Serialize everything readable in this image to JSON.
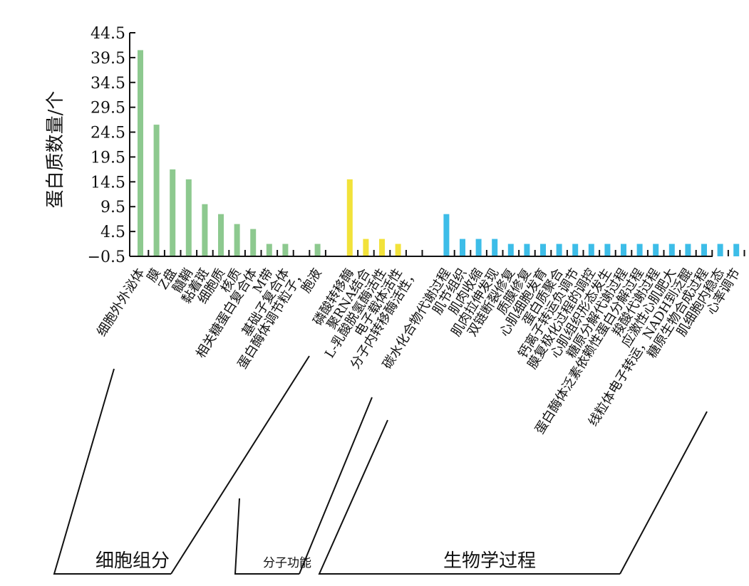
{
  "chart_data": {
    "type": "bar",
    "ylabel": "蛋白质数量/个",
    "ylim": [
      -0.5,
      44.5
    ],
    "yticks": [
      44.5,
      39.5,
      34.5,
      29.5,
      24.5,
      19.5,
      14.5,
      9.5,
      4.5,
      -0.5
    ],
    "ytick_labels": [
      "44.5",
      "39.5",
      "34.5",
      "29.5",
      "24.5",
      "19.5",
      "14.5",
      "9.5",
      "4.5",
      "−0.5"
    ],
    "grid": false,
    "groups": [
      {
        "name": "细胞组分",
        "color": "#8dc98f",
        "categories": [
          "细胞外外泌体",
          "膜",
          "Z盘",
          "髓鞘",
          "黏着斑",
          "细胞质",
          "核质",
          "相关糖蛋白复合体",
          "M带",
          "基础子复合体",
          "蛋白酶体调节粒子，",
          "胞液"
        ],
        "values": [
          41,
          26,
          17,
          15,
          10,
          8,
          6,
          5,
          2,
          2,
          0,
          2
        ]
      },
      {
        "name": "分子功能",
        "color": "#f2e23a",
        "categories": [
          "磷酸转移酶",
          "聚RNA结合",
          "L-乳酸脱氢酶活性",
          "电子载体活性",
          "分子内转移酶活性，"
        ],
        "values": [
          15,
          3,
          3,
          2,
          0
        ]
      },
      {
        "name": "生物学过程",
        "color": "#3dbde8",
        "categories": [
          "碳水化合物代谢过程",
          "肌节组织",
          "肌肉收缩",
          "肌肉拉伸发现",
          "双链断裂修复",
          "质膜修复",
          "心肌细胞发育",
          "蛋白质聚合",
          "钙离子转运负调节",
          "膜复极化过程的调控",
          "心肌组织形态发生",
          "糖原分解代谢过程",
          "蛋白酶体泛素依赖性蛋白分解过程",
          "羧酸代谢过程",
          "应激性心肌肥大",
          "线粒体电子转运，NADH到泛醌",
          "糖原生物合成过程",
          "肌细胞内稳态",
          "心率调节"
        ],
        "values": [
          8,
          3,
          3,
          3,
          2,
          2,
          2,
          2,
          2,
          2,
          2,
          2,
          2,
          2,
          2,
          2,
          2,
          2,
          2
        ]
      }
    ]
  }
}
